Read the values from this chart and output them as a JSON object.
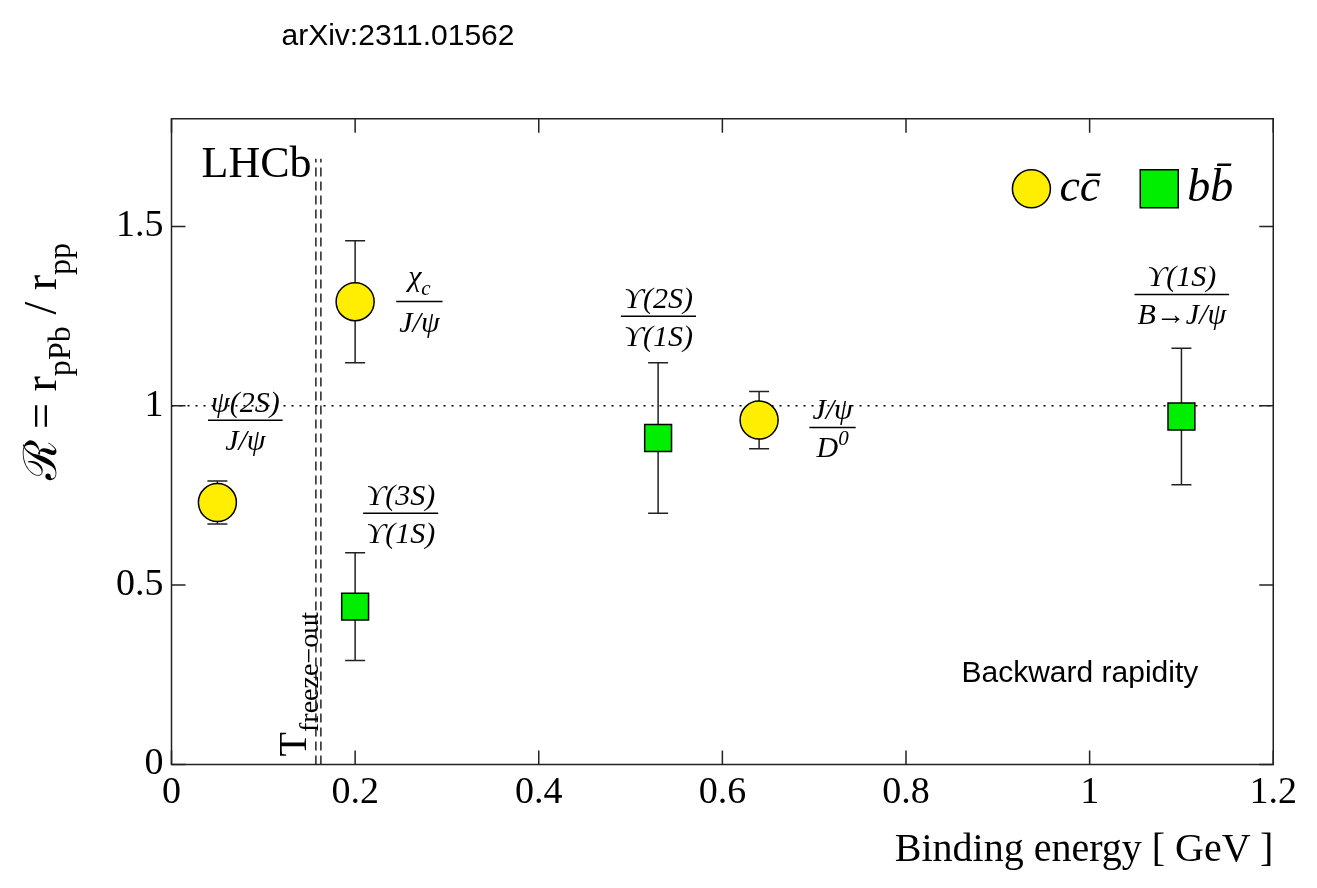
{
  "chart_data": {
    "type": "scatter",
    "title": "arXiv:2311.01562",
    "xlabel": "Binding energy [ GeV ]",
    "ylabel": "ℛ = r$_{pPb}$ / r$_{pp}$",
    "series": [
      {
        "name": "cc̄",
        "color": "#ffee00",
        "marker": "circle",
        "x": [
          0.05,
          0.2,
          0.64
        ],
        "values": [
          0.73,
          1.29,
          0.96
        ],
        "errors": [
          0.06,
          0.17,
          0.08
        ]
      },
      {
        "name": "bb̄",
        "color": "#00ee00",
        "marker": "square",
        "x": [
          0.2,
          0.53,
          1.1
        ],
        "values": [
          0.44,
          0.91,
          0.97
        ],
        "errors": [
          0.15,
          0.21,
          0.19
        ]
      }
    ],
    "xlim": [
      0,
      1.2
    ],
    "xticks": [
      0,
      0.2,
      0.4,
      0.6,
      0.8,
      1,
      1.2
    ],
    "ylim": [
      0,
      1.8
    ],
    "yticks": [
      0,
      0.5,
      1,
      1.5
    ],
    "grid": false,
    "legend": "top right",
    "ref_lines": [
      {
        "axis": "x",
        "value": 0.16,
        "label": "T$_{freeze−out}$",
        "line_style": "dashed"
      },
      {
        "axis": "y",
        "value": 1,
        "line_style": "dotted"
      }
    ],
    "annotations": [
      "LHCb",
      "Backward rapidity",
      "ψ(2S)\nJ/ψ",
      "χ$_{c}$\nJ/ψ",
      "ϒ(3S)\nϒ(1S)",
      "ϒ(2S)\nϒ(1S)",
      "J/ψ\nD$^{0}$",
      "ϒ(1S)\nB→J/ψ"
    ]
  }
}
